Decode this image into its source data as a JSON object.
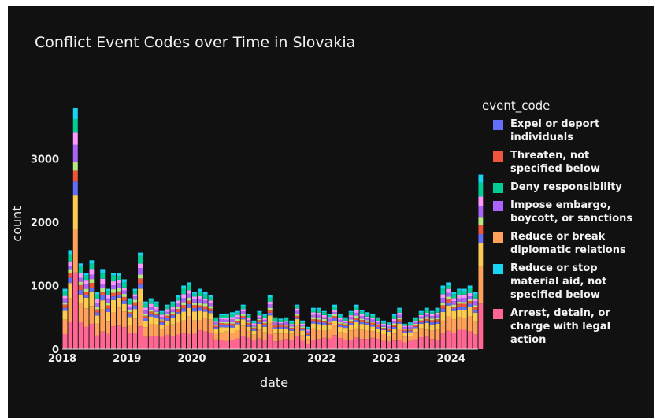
{
  "chart_data": {
    "type": "bar",
    "stacked": true,
    "title": "Conflict Event Codes over Time in Slovakia",
    "xlabel": "date",
    "ylabel": "count",
    "legend_title": "event_code",
    "legend_position": "right",
    "grid": false,
    "background": "#111111",
    "x_range": [
      "2018-01-01",
      "2024-06-01"
    ],
    "ylim": [
      0,
      3850
    ],
    "x_ticks": [
      {
        "date": "2018-01-01",
        "label": "2018"
      },
      {
        "date": "2019-01-01",
        "label": "2019"
      },
      {
        "date": "2020-01-01",
        "label": "2020"
      },
      {
        "date": "2021-01-01",
        "label": "2021"
      },
      {
        "date": "2022-01-01",
        "label": "2022"
      },
      {
        "date": "2023-01-01",
        "label": "2023"
      },
      {
        "date": "2024-01-01",
        "label": "2024"
      }
    ],
    "y_ticks": [
      0,
      1000,
      2000,
      3000
    ],
    "legend": [
      {
        "label": "Expel or deport individuals",
        "color": "#636efa"
      },
      {
        "label": "Threaten, not specified below",
        "color": "#ef553b"
      },
      {
        "label": "Deny responsibility",
        "color": "#00cc96"
      },
      {
        "label": "Impose embargo, boycott, or sanctions",
        "color": "#ab63fa"
      },
      {
        "label": "Reduce or break diplomatic relations",
        "color": "#ffa15a"
      },
      {
        "label": "Reduce or stop material aid, not specified below",
        "color": "#19d3f3"
      },
      {
        "label": "Arrest, detain, or charge with legal action",
        "color": "#ff6692"
      }
    ],
    "palette": [
      "#636efa",
      "#ef553b",
      "#00cc96",
      "#ab63fa",
      "#ffa15a",
      "#19d3f3",
      "#ff6692",
      "#b6e880",
      "#ff97ff",
      "#fecb52"
    ],
    "monthly_totals": [
      950,
      1560,
      3800,
      1350,
      1200,
      1400,
      900,
      1250,
      950,
      1200,
      1200,
      1100,
      800,
      950,
      1520,
      750,
      800,
      750,
      600,
      700,
      750,
      850,
      1000,
      1050,
      900,
      950,
      900,
      850,
      500,
      550,
      560,
      580,
      600,
      700,
      550,
      450,
      600,
      550,
      850,
      500,
      480,
      500,
      450,
      700,
      450,
      350,
      650,
      650,
      600,
      550,
      700,
      550,
      500,
      600,
      700,
      620,
      580,
      550,
      500,
      450,
      420,
      550,
      650,
      400,
      420,
      500,
      600,
      650,
      600,
      650,
      1000,
      1050,
      900,
      950,
      950,
      1000,
      900,
      2750
    ]
  }
}
